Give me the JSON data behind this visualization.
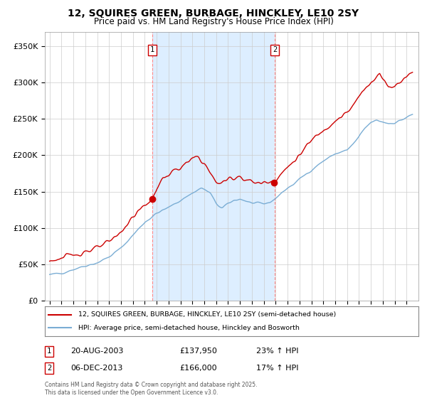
{
  "title": "12, SQUIRES GREEN, BURBAGE, HINCKLEY, LE10 2SY",
  "subtitle": "Price paid vs. HM Land Registry's House Price Index (HPI)",
  "legend_line1": "12, SQUIRES GREEN, BURBAGE, HINCKLEY, LE10 2SY (semi-detached house)",
  "legend_line2": "HPI: Average price, semi-detached house, Hinckley and Bosworth",
  "sale1_date": "20-AUG-2003",
  "sale1_price": "£137,950",
  "sale1_hpi": "23% ↑ HPI",
  "sale2_date": "06-DEC-2013",
  "sale2_price": "£166,000",
  "sale2_hpi": "17% ↑ HPI",
  "footnote": "Contains HM Land Registry data © Crown copyright and database right 2025.\nThis data is licensed under the Open Government Licence v3.0.",
  "red_color": "#cc0000",
  "blue_color": "#7aadd4",
  "shade_color": "#ddeeff",
  "background": "#ffffff",
  "grid_color": "#cccccc",
  "ylim": [
    0,
    370000
  ],
  "yticks": [
    0,
    50000,
    100000,
    150000,
    200000,
    250000,
    300000,
    350000
  ],
  "sale1_year": 2003.63,
  "sale2_year": 2013.92,
  "sale1_price_val": 137950,
  "sale2_price_val": 166000
}
